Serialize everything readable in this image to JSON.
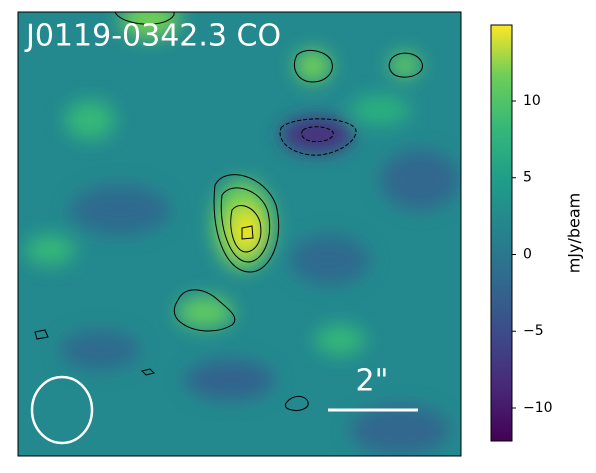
{
  "chart_data": {
    "type": "image-map",
    "title": "J0119-0342.3 CO",
    "scale_bar_label": "2\"",
    "colorbar": {
      "label": "mJy/beam",
      "lim": [
        -12.15,
        14.95
      ],
      "ticks": [
        {
          "value": -10,
          "label": "−10"
        },
        {
          "value": -5,
          "label": "−5"
        },
        0,
        5,
        10
      ]
    }
  }
}
